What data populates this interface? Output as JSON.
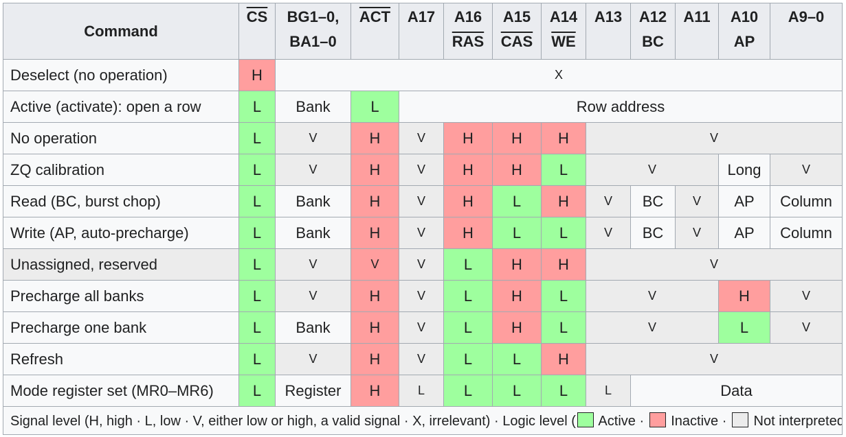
{
  "header": {
    "command": "Command",
    "cs": "CS",
    "bg1": "BG1–0,",
    "bg2": "BA1–0",
    "act": "ACT",
    "a17": "A17",
    "a16a": "A16",
    "a16b": "RAS",
    "a15a": "A15",
    "a15b": "CAS",
    "a14a": "A14",
    "a14b": "WE",
    "a13": "A13",
    "a12a": "A12",
    "a12b": "BC",
    "a11": "A11",
    "a10a": "A10",
    "a10b": "AP",
    "a9": "A9–0"
  },
  "rows": [
    {
      "name": "Deselect (no operation)",
      "c": [
        "H",
        "X"
      ]
    },
    {
      "name": "Active (activate): open a row",
      "c": [
        "L",
        "Bank",
        "L",
        "Row address"
      ]
    },
    {
      "name": "No operation",
      "c": [
        "L",
        "V",
        "H",
        "V",
        "H",
        "H",
        "H",
        "V"
      ]
    },
    {
      "name": "ZQ calibration",
      "c": [
        "L",
        "V",
        "H",
        "V",
        "H",
        "H",
        "L",
        "V",
        "Long",
        "V"
      ]
    },
    {
      "name": "Read (BC, burst chop)",
      "c": [
        "L",
        "Bank",
        "H",
        "V",
        "H",
        "L",
        "H",
        "V",
        "BC",
        "V",
        "AP",
        "Column"
      ]
    },
    {
      "name": "Write (AP, auto-precharge)",
      "c": [
        "L",
        "Bank",
        "H",
        "V",
        "H",
        "L",
        "L",
        "V",
        "BC",
        "V",
        "AP",
        "Column"
      ]
    },
    {
      "name": "Unassigned, reserved",
      "c": [
        "L",
        "V",
        "V",
        "V",
        "L",
        "H",
        "H",
        "V"
      ]
    },
    {
      "name": "Precharge all banks",
      "c": [
        "L",
        "V",
        "H",
        "V",
        "L",
        "H",
        "L",
        "V",
        "H",
        "V"
      ]
    },
    {
      "name": "Precharge one bank",
      "c": [
        "L",
        "Bank",
        "H",
        "V",
        "L",
        "H",
        "L",
        "V",
        "L",
        "V"
      ]
    },
    {
      "name": "Refresh",
      "c": [
        "L",
        "V",
        "H",
        "V",
        "L",
        "L",
        "H",
        "V"
      ]
    },
    {
      "name": "Mode register set (MR0–MR6)",
      "c": [
        "L",
        "Register",
        "H",
        "L",
        "L",
        "L",
        "L",
        "L",
        "Data"
      ]
    }
  ],
  "legend": {
    "prefix": "Signal level (H, high · L, low · V, either low or high, a valid signal · X, irrelevant) · Logic level (",
    "active": "Active ·",
    "inactive": "Inactive ·",
    "ni": "Not interpreted)",
    "colors": {
      "active": "#9eff9e",
      "inactive": "#ff9e9e",
      "not_interpreted": "#ececec"
    }
  }
}
